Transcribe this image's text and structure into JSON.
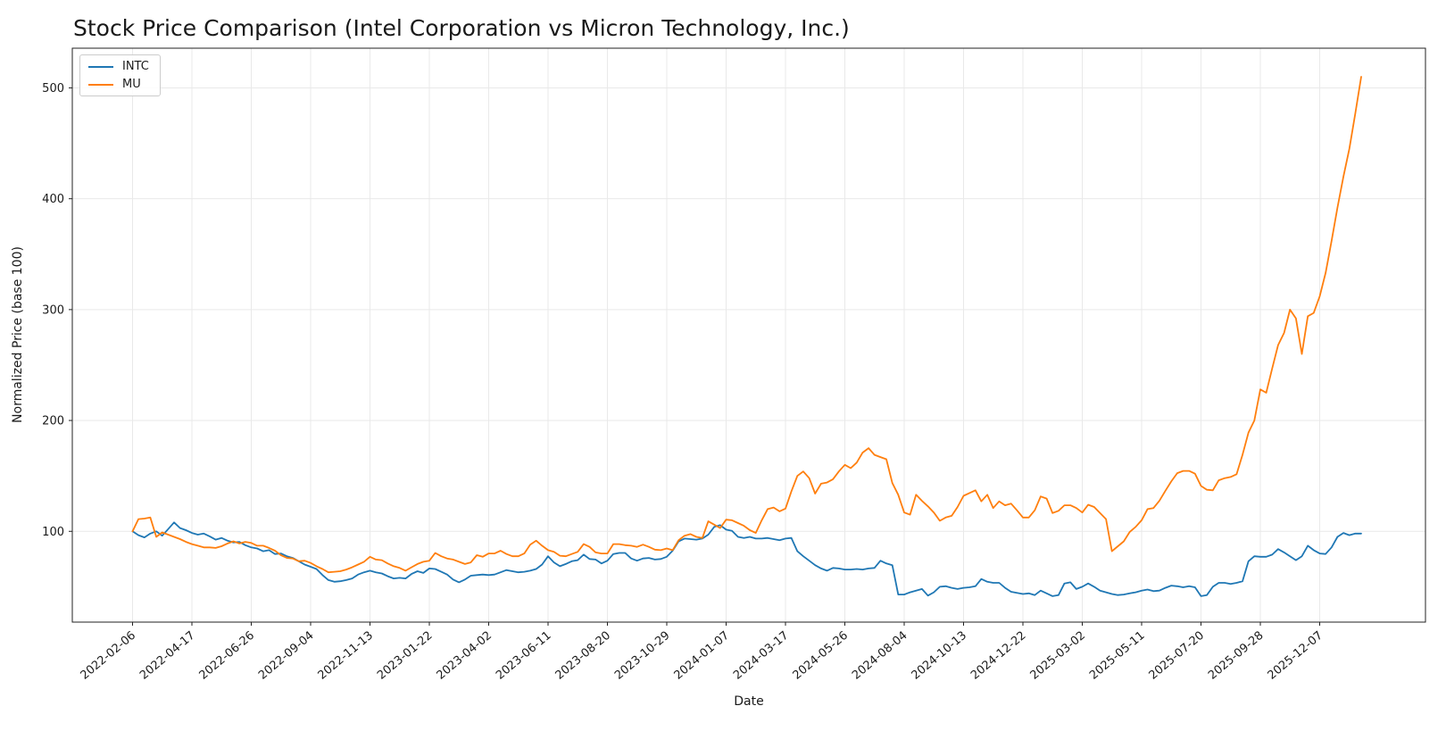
{
  "title": "Stock Price Comparison (Intel Corporation vs Micron Technology, Inc.)",
  "chart_data": {
    "type": "line",
    "title": "Stock Price Comparison (Intel Corporation vs Micron Technology, Inc.)",
    "xlabel": "Date",
    "ylabel": "Normalized Price (base 100)",
    "grid": true,
    "legend_position": "upper-left",
    "background": "#ffffff",
    "grid_color": "#e9e9e9",
    "spine_color": "#222222",
    "text_color": "#1a1a1a",
    "x_unit": "weeks since 2022-02-06 (weekly data, 7-day interval)",
    "x_start_date": "2022-02-06",
    "x_interval_days": 7,
    "xlim": [
      -10.15,
      217.82
    ],
    "ylim": [
      18.1,
      535.8
    ],
    "y_ticks": [
      100,
      200,
      300,
      400,
      500
    ],
    "x_tick_weeks": [
      0,
      10,
      20,
      30,
      40,
      50,
      60,
      70,
      80,
      90,
      100,
      110,
      120,
      130,
      140,
      150,
      160,
      170,
      180,
      190,
      200
    ],
    "x_tick_labels": [
      "2022-02-06",
      "2022-04-17",
      "2022-06-26",
      "2022-09-04",
      "2022-11-13",
      "2023-01-22",
      "2023-04-02",
      "2023-06-11",
      "2023-08-20",
      "2023-10-29",
      "2024-01-07",
      "2024-03-17",
      "2024-05-26",
      "2024-08-04",
      "2024-10-13",
      "2024-12-22",
      "2025-03-02",
      "2025-05-11",
      "2025-07-20",
      "2025-09-28",
      "2025-12-07"
    ],
    "series": [
      {
        "name": "INTC",
        "color": "#1f77b4",
        "values": [
          100,
          96.5,
          94.5,
          98,
          100,
          96,
          102,
          108,
          103,
          101,
          98.5,
          97,
          98,
          95.5,
          92.5,
          94,
          91.5,
          90,
          90.5,
          87.5,
          85.5,
          84.5,
          82,
          83,
          79.5,
          80,
          77.5,
          76,
          73,
          70,
          68,
          66,
          60.5,
          56,
          54.5,
          55,
          56,
          57.5,
          61,
          63,
          64.5,
          63,
          62,
          59.5,
          57.5,
          58,
          57.5,
          61.5,
          64,
          62.5,
          66.5,
          66,
          63.5,
          61,
          56.5,
          54,
          56.5,
          60,
          60.5,
          61,
          60.5,
          61,
          63,
          65,
          64,
          63,
          63.5,
          64.5,
          66,
          70,
          77.5,
          72,
          68.5,
          70.5,
          73,
          74,
          79,
          75,
          74.5,
          71,
          73.5,
          79.5,
          80.5,
          80.5,
          75.5,
          73.5,
          75.5,
          76,
          74.5,
          75,
          77,
          82.5,
          91,
          93.5,
          93,
          92.5,
          93.5,
          97,
          104,
          105.5,
          101.5,
          100.5,
          95,
          94,
          95,
          93.5,
          93.5,
          94,
          93,
          92,
          93.5,
          94,
          82,
          77.5,
          73.5,
          69.5,
          66.5,
          64.5,
          67,
          66.5,
          65.5,
          65.5,
          66,
          65.5,
          66.5,
          67,
          73.5,
          71,
          69.5,
          43,
          43,
          45,
          46.5,
          48,
          42,
          45,
          50,
          50.5,
          49,
          48,
          49,
          49.5,
          50.5,
          57,
          54.5,
          53.5,
          53.5,
          49,
          45.5,
          44.5,
          43.5,
          44,
          42.5,
          46.5,
          44,
          41.5,
          42.5,
          53,
          54,
          48,
          50,
          53,
          50,
          46.5,
          45,
          43.5,
          42.5,
          43,
          44,
          45,
          46.5,
          47.5,
          46,
          46.5,
          49,
          51,
          50.5,
          49.5,
          50.5,
          49.5,
          41.5,
          42.5,
          50,
          53.5,
          53.5,
          52.5,
          53.5,
          55,
          73,
          77.5,
          77,
          77,
          79,
          84,
          81,
          77.5,
          74,
          77.5,
          87,
          83,
          80,
          79.5,
          85.5,
          95,
          98.5,
          96.5,
          98,
          98
        ]
      },
      {
        "name": "MU",
        "color": "#ff7f0e",
        "values": [
          100,
          111,
          111.5,
          112.5,
          95,
          99,
          97,
          95,
          93,
          90.5,
          88.5,
          87,
          85.5,
          85.5,
          85,
          86.5,
          89,
          91,
          89,
          90.5,
          89.5,
          87,
          87,
          85,
          82.5,
          78.5,
          76,
          75.5,
          73,
          73.5,
          71.5,
          68.5,
          66,
          63,
          63.5,
          64,
          65.5,
          67.5,
          70,
          72.5,
          77,
          74.5,
          74,
          71,
          68.5,
          67,
          64.5,
          67.5,
          70.5,
          72.5,
          73.5,
          80.5,
          77.5,
          75.5,
          74.5,
          72.5,
          70.5,
          72,
          78.5,
          77,
          80,
          80,
          82.5,
          79.5,
          77.5,
          77.5,
          80,
          88,
          91.5,
          87,
          83,
          81.5,
          78,
          77.5,
          79.5,
          81.5,
          88.5,
          86,
          81,
          80,
          80,
          88.5,
          88.5,
          87.5,
          87,
          86,
          88,
          86,
          83.5,
          83,
          84.5,
          83,
          92,
          96,
          97.5,
          95,
          94,
          109,
          106,
          103,
          110.5,
          110,
          107.5,
          105,
          101,
          98.5,
          110,
          120,
          121.5,
          118,
          120.5,
          136,
          150,
          154,
          148,
          134,
          143,
          144,
          147,
          154,
          160,
          157,
          162,
          171,
          175,
          169,
          167,
          165,
          143.5,
          133,
          117,
          115,
          133,
          127.5,
          122.5,
          117,
          109.5,
          112.5,
          114,
          122,
          132,
          134.5,
          137,
          127,
          133,
          121,
          127,
          123.5,
          125,
          119,
          112.5,
          112.5,
          119,
          131.5,
          129.5,
          116.5,
          118.5,
          123.5,
          123.5,
          121,
          117,
          124,
          122,
          116.5,
          111,
          82,
          86.5,
          91,
          99.5,
          104,
          110,
          120,
          121,
          127.5,
          136.5,
          145,
          152.5,
          154.5,
          154.5,
          152,
          141,
          137.5,
          137,
          146,
          148,
          149,
          151.5,
          169,
          189,
          200,
          228,
          225,
          247,
          268,
          279,
          300,
          292,
          260,
          294,
          297,
          312,
          333,
          362,
          392,
          420,
          445,
          477,
          510
        ]
      }
    ]
  },
  "legend": {
    "items": [
      {
        "label": "INTC",
        "color": "#1f77b4"
      },
      {
        "label": "MU",
        "color": "#ff7f0e"
      }
    ]
  }
}
